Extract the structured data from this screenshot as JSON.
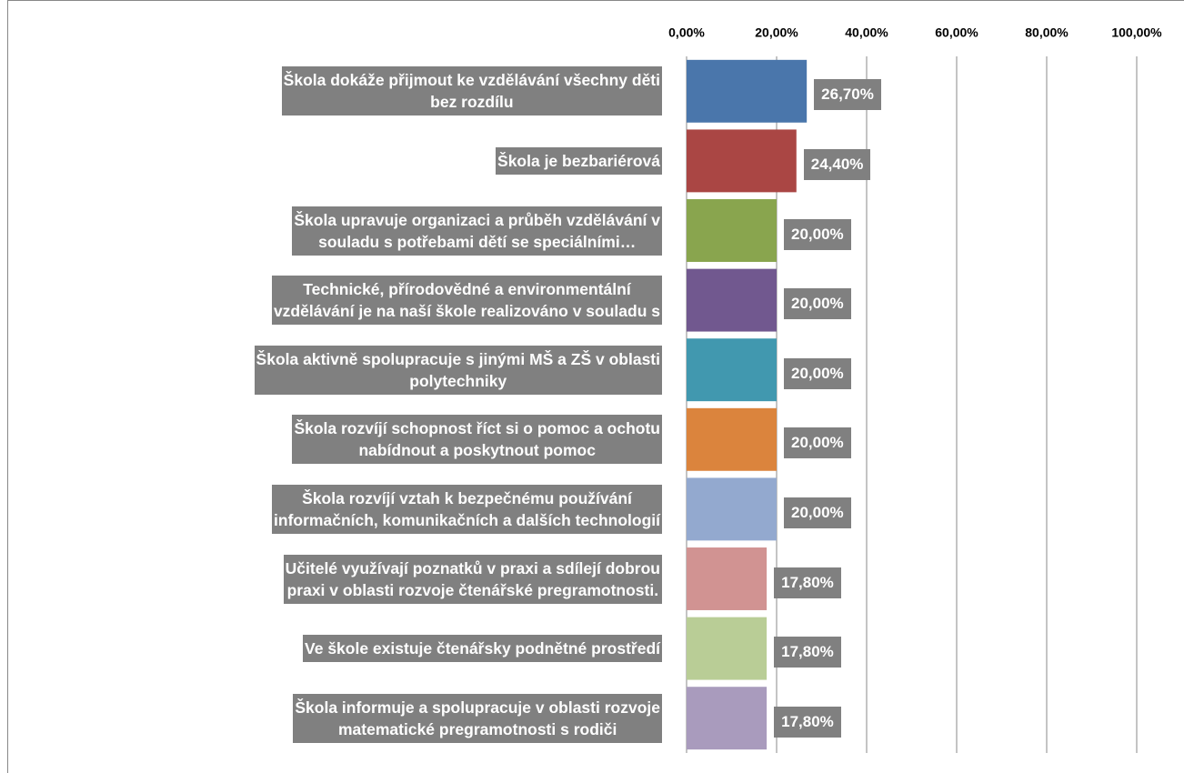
{
  "chart_data": {
    "type": "barh",
    "categories": [
      "Škola dokáže přijmout ke vzdělávání všechny děti\nbez rozdílu",
      "Škola je bezbariérová",
      "Škola upravuje organizaci a průběh vzdělávání v\nsouladu s potřebami dětí se speciálními…",
      "Technické, přírodovědné a environmentální\nvzdělávání je na naší škole realizováno v souladu s",
      "Škola aktivně spolupracuje s jinými MŠ a ZŠ v oblasti\npolytechniky",
      "Škola rozvíjí schopnost říct si o pomoc a ochotu\nnabídnout a poskytnout pomoc",
      "Škola rozvíjí vztah k bezpečnému používání\ninformačních, komunikačních a dalších technologií",
      "Učitelé využívají poznatků v praxi a sdílejí dobrou\npraxi v oblasti rozvoje čtenářské pregramotnosti.",
      "Ve škole existuje čtenářsky podnětné prostředí",
      "Škola informuje a spolupracuje v oblasti rozvoje\nmatematické pregramotnosti s rodiči"
    ],
    "values": [
      26.7,
      24.4,
      20,
      20,
      20,
      20,
      20,
      17.8,
      17.8,
      17.8
    ],
    "value_labels": [
      "26,70%",
      "24,40%",
      "20,00%",
      "20,00%",
      "20,00%",
      "20,00%",
      "20,00%",
      "17,80%",
      "17,80%",
      "17,80%"
    ],
    "colors": [
      "#4a76ab",
      "#aa4644",
      "#89a54e",
      "#71588f",
      "#4198af",
      "#db843d",
      "#93a9cf",
      "#d19392",
      "#b9cd96",
      "#a99bbd"
    ],
    "xlim": [
      0,
      100
    ],
    "xticks": [
      {
        "value": 0,
        "label": "0,00%"
      },
      {
        "value": 20,
        "label": "20,00%"
      },
      {
        "value": 40,
        "label": "40,00%"
      },
      {
        "value": 60,
        "label": "60,00%"
      },
      {
        "value": 80,
        "label": "80,00%"
      },
      {
        "value": 100,
        "label": "100,00%"
      }
    ],
    "grid": true
  }
}
